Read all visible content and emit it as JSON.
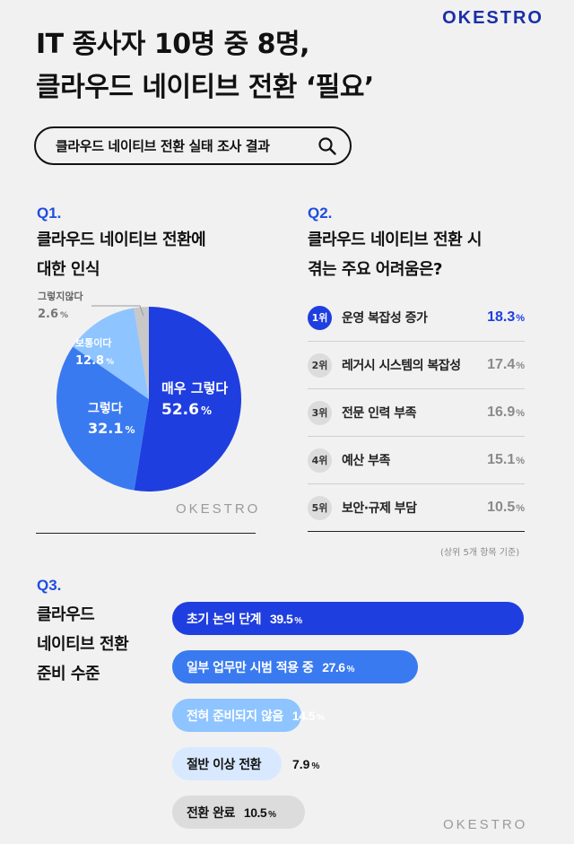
{
  "brand": {
    "logo": "OKESTRO"
  },
  "title": {
    "line1": "IT 종사자 10명 중 8명,",
    "line2": "클라우드 네이티브 전환 ‘필요’"
  },
  "search": {
    "label": "클라우드 네이티브 전환 실태 조사 결과",
    "icon": "search-icon"
  },
  "colors": {
    "accent": "#1f3ee0",
    "blue2": "#3a7af0",
    "blue3": "#8ec4ff",
    "blue4": "#d8e9ff",
    "gray": "#dcdcdc"
  },
  "q1": {
    "tag": "Q1.",
    "head_line1": "클라우드 네이티브 전환에",
    "head_line2": "대한 인식"
  },
  "q2": {
    "tag": "Q2.",
    "head_line1": "클라우드 네이티브 전환 시",
    "head_line2": "겪는 주요 어려움은?",
    "footnote": "(상위 5개 항목 기준)"
  },
  "q3": {
    "tag": "Q3.",
    "head_line1": "클라우드",
    "head_line2": "네이티브 전환",
    "head_line3": "준비 수준"
  },
  "percent_sign": "%",
  "chart_data": [
    {
      "type": "pie",
      "labels": [
        "매우 그렇다",
        "그렇다",
        "보통이다",
        "그렇지않다"
      ],
      "values": [
        52.6,
        32.1,
        12.8,
        2.6
      ],
      "colors": [
        "#1f3ee0",
        "#3a7af0",
        "#8ec4ff",
        "#c8c8c8"
      ]
    },
    {
      "type": "table",
      "ranks": [
        "1위",
        "2위",
        "3위",
        "4위",
        "5위"
      ],
      "categories": [
        "운영 복잡성 증가",
        "레거시 시스템의 복잡성",
        "전문 인력 부족",
        "예산 부족",
        "보안·규제 부담"
      ],
      "values": [
        18.3,
        17.4,
        16.9,
        15.1,
        10.5
      ]
    },
    {
      "type": "bar",
      "orientation": "horizontal",
      "categories": [
        "초기 논의 단계",
        "일부 업무만 시범 적용 중",
        "전혀 준비되지 않음",
        "절반 이상 전환",
        "전환 완료"
      ],
      "values": [
        39.5,
        27.6,
        14.5,
        7.9,
        10.5
      ],
      "colors": [
        "#1f3ee0",
        "#3a7af0",
        "#8ec4ff",
        "#d8e9ff",
        "#dcdcdc"
      ],
      "text_colors": [
        "#ffffff",
        "#ffffff",
        "#ffffff",
        "#111111",
        "#111111"
      ]
    }
  ]
}
